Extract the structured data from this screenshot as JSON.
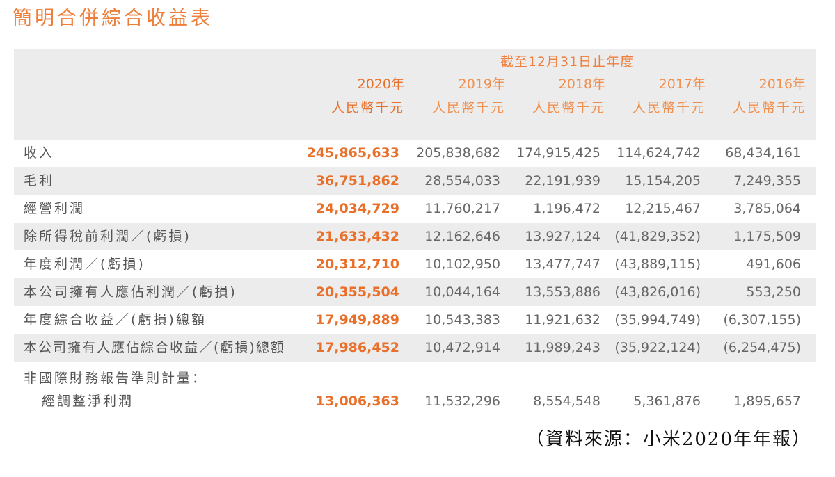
{
  "title": "簡明合併綜合收益表",
  "header": {
    "period": "截至12月31日止年度",
    "years": [
      "2020年",
      "2019年",
      "2018年",
      "2017年",
      "2016年"
    ],
    "unit": "人民幣千元"
  },
  "rows": [
    {
      "label": "收入",
      "values": [
        "245,865,633",
        "205,838,682",
        "174,915,425",
        "114,624,742",
        "68,434,161"
      ]
    },
    {
      "label": "毛利",
      "values": [
        "36,751,862",
        "28,554,033",
        "22,191,939",
        "15,154,205",
        "7,249,355"
      ]
    },
    {
      "label": "經營利潤",
      "values": [
        "24,034,729",
        "11,760,217",
        "1,196,472",
        "12,215,467",
        "3,785,064"
      ]
    },
    {
      "label": "除所得稅前利潤／(虧損)",
      "values": [
        "21,633,432",
        "12,162,646",
        "13,927,124",
        "(41,829,352)",
        "1,175,509"
      ]
    },
    {
      "label": "年度利潤／(虧損)",
      "values": [
        "20,312,710",
        "10,102,950",
        "13,477,747",
        "(43,889,115)",
        "491,606"
      ]
    },
    {
      "label": "本公司擁有人應佔利潤／(虧損)",
      "values": [
        "20,355,504",
        "10,044,164",
        "13,553,886",
        "(43,826,016)",
        "553,250"
      ]
    },
    {
      "label": "年度綜合收益／(虧損)總額",
      "values": [
        "17,949,889",
        "10,543,383",
        "11,921,632",
        "(35,994,749)",
        "(6,307,155)"
      ]
    },
    {
      "label": "本公司擁有人應佔綜合收益／(虧損)總額",
      "values": [
        "17,986,452",
        "10,472,914",
        "11,989,243",
        "(35,922,124)",
        "(6,254,475)"
      ]
    }
  ],
  "non_ifrs": {
    "heading": "非國際財務報告準則計量：",
    "label": "經調整淨利潤",
    "values": [
      "13,006,363",
      "11,532,296",
      "8,554,548",
      "5,361,876",
      "1,895,657"
    ]
  },
  "source": "（資料來源：小米2020年年報）"
}
